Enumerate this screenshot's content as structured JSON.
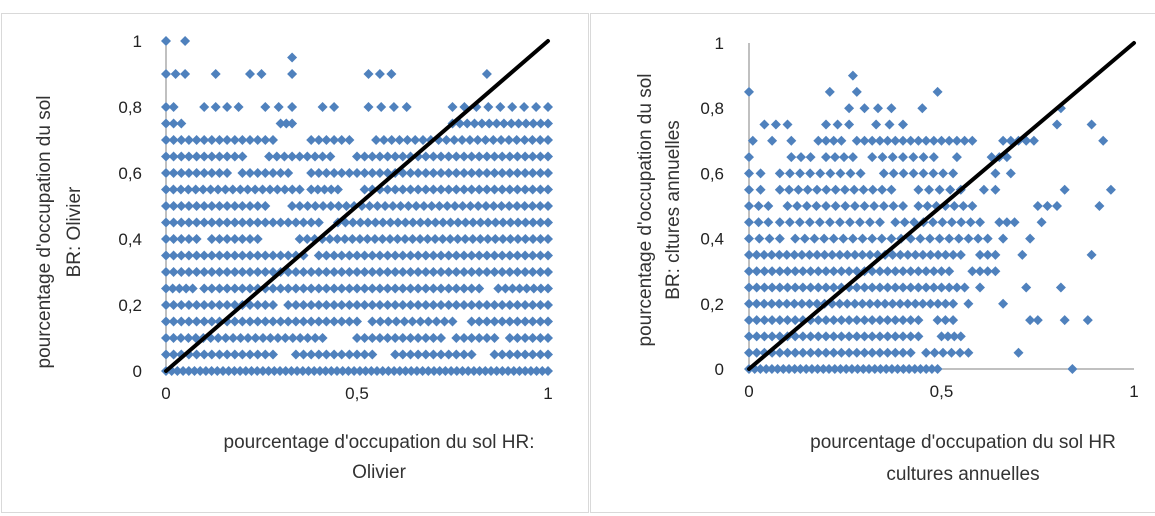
{
  "chart_data": [
    {
      "type": "scatter",
      "title": "",
      "xlabel": "pourcentage d'occupation du sol HR: Olivier",
      "xlabel_lines": [
        "pourcentage d'occupation du sol HR:",
        "Olivier"
      ],
      "ylabel": "pourcentage d'occupation du sol BR: Olivier",
      "ylabel_lines": [
        "pourcentage d'occupation du sol",
        "BR: Olivier"
      ],
      "xlim": [
        0,
        1
      ],
      "ylim": [
        0,
        1
      ],
      "xticks": [
        "0",
        "0,5",
        "1"
      ],
      "yticks": [
        "0",
        "0,2",
        "0,4",
        "0,6",
        "0,8",
        "1"
      ],
      "grid": false,
      "legend": "none",
      "marker_color": "#4f81bd",
      "line_color": "#000000",
      "reference_line": {
        "x": [
          0,
          1
        ],
        "y": [
          0,
          1
        ]
      },
      "point_rows": [
        {
          "y": 1.0,
          "x_ranges": [
            [
              0.0,
              0.05
            ]
          ],
          "step": 0.05
        },
        {
          "y": 0.95,
          "x_ranges": [
            [
              0.33,
              0.33
            ]
          ],
          "step": 0.05
        },
        {
          "y": 0.9,
          "x_ranges": [
            [
              0.0,
              0.05
            ],
            [
              0.13,
              0.13
            ],
            [
              0.22,
              0.25
            ],
            [
              0.33,
              0.33
            ],
            [
              0.53,
              0.59
            ],
            [
              0.84,
              0.84
            ]
          ],
          "step": 0.03
        },
        {
          "y": 0.8,
          "x_ranges": [
            [
              0.0,
              0.02
            ],
            [
              0.1,
              0.19
            ],
            [
              0.26,
              0.33
            ],
            [
              0.41,
              0.44
            ],
            [
              0.53,
              0.63
            ],
            [
              0.75,
              1.0
            ]
          ],
          "step": 0.03
        },
        {
          "y": 0.75,
          "x_ranges": [
            [
              0.0,
              0.04
            ],
            [
              0.3,
              0.33
            ],
            [
              0.75,
              1.0
            ]
          ],
          "step": 0.02
        },
        {
          "y": 0.7,
          "x_ranges": [
            [
              0.0,
              0.28
            ],
            [
              0.38,
              0.48
            ],
            [
              0.55,
              1.0
            ]
          ],
          "step": 0.02
        },
        {
          "y": 0.65,
          "x_ranges": [
            [
              0.0,
              0.2
            ],
            [
              0.27,
              0.43
            ],
            [
              0.5,
              1.0
            ]
          ],
          "step": 0.02
        },
        {
          "y": 0.6,
          "x_ranges": [
            [
              0.0,
              0.16
            ],
            [
              0.2,
              0.32
            ],
            [
              0.38,
              1.0
            ]
          ],
          "step": 0.02
        },
        {
          "y": 0.55,
          "x_ranges": [
            [
              0.0,
              0.35
            ],
            [
              0.38,
              0.45
            ],
            [
              0.52,
              1.0
            ]
          ],
          "step": 0.02
        },
        {
          "y": 0.5,
          "x_ranges": [
            [
              0.0,
              0.26
            ],
            [
              0.33,
              1.0
            ]
          ],
          "step": 0.02
        },
        {
          "y": 0.45,
          "x_ranges": [
            [
              0.0,
              0.4
            ],
            [
              0.45,
              1.0
            ]
          ],
          "step": 0.02
        },
        {
          "y": 0.4,
          "x_ranges": [
            [
              0.0,
              0.08
            ],
            [
              0.12,
              0.24
            ],
            [
              0.35,
              1.0
            ]
          ],
          "step": 0.02
        },
        {
          "y": 0.35,
          "x_ranges": [
            [
              0.0,
              0.36
            ],
            [
              0.4,
              1.0
            ]
          ],
          "step": 0.02
        },
        {
          "y": 0.3,
          "x_ranges": [
            [
              0.0,
              1.0
            ]
          ],
          "step": 0.02
        },
        {
          "y": 0.25,
          "x_ranges": [
            [
              0.0,
              0.07
            ],
            [
              0.1,
              0.82
            ],
            [
              0.87,
              1.0
            ]
          ],
          "step": 0.02
        },
        {
          "y": 0.2,
          "x_ranges": [
            [
              0.0,
              0.28
            ],
            [
              0.32,
              1.0
            ]
          ],
          "step": 0.02
        },
        {
          "y": 0.15,
          "x_ranges": [
            [
              0.0,
              0.5
            ],
            [
              0.54,
              0.75
            ],
            [
              0.8,
              1.0
            ]
          ],
          "step": 0.02
        },
        {
          "y": 0.1,
          "x_ranges": [
            [
              0.0,
              0.41
            ],
            [
              0.5,
              0.72
            ],
            [
              0.76,
              0.86
            ],
            [
              0.9,
              1.0
            ]
          ],
          "step": 0.02
        },
        {
          "y": 0.05,
          "x_ranges": [
            [
              0.0,
              0.28
            ],
            [
              0.34,
              0.54
            ],
            [
              0.6,
              0.8
            ],
            [
              0.86,
              1.0
            ]
          ],
          "step": 0.02
        },
        {
          "y": 0.0,
          "x_ranges": [
            [
              0.0,
              1.0
            ]
          ],
          "step": 0.015
        }
      ]
    },
    {
      "type": "scatter",
      "title": "",
      "xlabel": "pourcentage d'occupation du sol HR cultures annuelles",
      "xlabel_lines": [
        "pourcentage d'occupation du sol  HR",
        "cultures annuelles"
      ],
      "ylabel": "pourcentage d'occupation du sol BR: cltures annuelles",
      "ylabel_lines": [
        "pourcentage d'occupation du sol",
        "BR: cltures annuelles"
      ],
      "xlim": [
        0,
        1
      ],
      "ylim": [
        0,
        1
      ],
      "xticks": [
        "0",
        "0,5",
        "1"
      ],
      "yticks": [
        "0",
        "0,2",
        "0,4",
        "0,6",
        "0,8",
        "1"
      ],
      "grid": false,
      "legend": "none",
      "marker_color": "#4f81bd",
      "line_color": "#000000",
      "reference_line": {
        "x": [
          0,
          1
        ],
        "y": [
          0,
          1
        ]
      },
      "point_rows": [
        {
          "y": 0.9,
          "x_ranges": [
            [
              0.27,
              0.27
            ]
          ],
          "step": 0.05
        },
        {
          "y": 0.85,
          "x_ranges": [
            [
              0.0,
              0.0
            ],
            [
              0.21,
              0.21
            ],
            [
              0.28,
              0.28
            ],
            [
              0.49,
              0.49
            ]
          ],
          "step": 0.05
        },
        {
          "y": 0.8,
          "x_ranges": [
            [
              0.26,
              0.26
            ],
            [
              0.3,
              0.37
            ],
            [
              0.45,
              0.45
            ],
            [
              0.81,
              0.81
            ]
          ],
          "step": 0.035
        },
        {
          "y": 0.75,
          "x_ranges": [
            [
              0.04,
              0.1
            ],
            [
              0.2,
              0.26
            ],
            [
              0.33,
              0.4
            ],
            [
              0.8,
              0.8
            ],
            [
              0.89,
              0.89
            ]
          ],
          "step": 0.03
        },
        {
          "y": 0.7,
          "x_ranges": [
            [
              0.01,
              0.01
            ],
            [
              0.06,
              0.06
            ],
            [
              0.11,
              0.11
            ],
            [
              0.18,
              0.24
            ],
            [
              0.28,
              0.58
            ],
            [
              0.66,
              0.74
            ],
            [
              0.92,
              0.92
            ]
          ],
          "step": 0.02
        },
        {
          "y": 0.65,
          "x_ranges": [
            [
              0.0,
              0.0
            ],
            [
              0.11,
              0.16
            ],
            [
              0.2,
              0.27
            ],
            [
              0.32,
              0.48
            ],
            [
              0.54,
              0.54
            ],
            [
              0.63,
              0.67
            ]
          ],
          "step": 0.025
        },
        {
          "y": 0.6,
          "x_ranges": [
            [
              0.0,
              0.03
            ],
            [
              0.08,
              0.29
            ],
            [
              0.35,
              0.53
            ],
            [
              0.64,
              0.64
            ],
            [
              0.68,
              0.68
            ]
          ],
          "step": 0.025
        },
        {
          "y": 0.55,
          "x_ranges": [
            [
              0.0,
              0.03
            ],
            [
              0.08,
              0.37
            ],
            [
              0.44,
              0.55
            ],
            [
              0.61,
              0.64
            ],
            [
              0.82,
              0.82
            ],
            [
              0.94,
              0.94
            ]
          ],
          "step": 0.025
        },
        {
          "y": 0.5,
          "x_ranges": [
            [
              0.0,
              0.05
            ],
            [
              0.1,
              0.4
            ],
            [
              0.44,
              0.58
            ],
            [
              0.75,
              0.8
            ],
            [
              0.91,
              0.91
            ]
          ],
          "step": 0.025
        },
        {
          "y": 0.45,
          "x_ranges": [
            [
              0.0,
              0.05
            ],
            [
              0.08,
              0.34
            ],
            [
              0.38,
              0.6
            ],
            [
              0.65,
              0.69
            ],
            [
              0.76,
              0.76
            ]
          ],
          "step": 0.025
        },
        {
          "y": 0.4,
          "x_ranges": [
            [
              0.0,
              0.08
            ],
            [
              0.12,
              0.62
            ],
            [
              0.66,
              0.66
            ],
            [
              0.73,
              0.73
            ]
          ],
          "step": 0.025
        },
        {
          "y": 0.35,
          "x_ranges": [
            [
              0.0,
              0.55
            ],
            [
              0.6,
              0.64
            ],
            [
              0.71,
              0.71
            ],
            [
              0.89,
              0.89
            ]
          ],
          "step": 0.02
        },
        {
          "y": 0.3,
          "x_ranges": [
            [
              0.0,
              0.52
            ],
            [
              0.58,
              0.64
            ]
          ],
          "step": 0.02
        },
        {
          "y": 0.25,
          "x_ranges": [
            [
              0.0,
              0.56
            ],
            [
              0.6,
              0.6
            ],
            [
              0.72,
              0.72
            ],
            [
              0.81,
              0.81
            ]
          ],
          "step": 0.02
        },
        {
          "y": 0.2,
          "x_ranges": [
            [
              0.0,
              0.53
            ],
            [
              0.57,
              0.57
            ],
            [
              0.66,
              0.66
            ]
          ],
          "step": 0.02
        },
        {
          "y": 0.15,
          "x_ranges": [
            [
              0.0,
              0.44
            ],
            [
              0.49,
              0.53
            ],
            [
              0.73,
              0.75
            ],
            [
              0.82,
              0.82
            ],
            [
              0.88,
              0.88
            ]
          ],
          "step": 0.02
        },
        {
          "y": 0.1,
          "x_ranges": [
            [
              0.0,
              0.44
            ],
            [
              0.5,
              0.55
            ]
          ],
          "step": 0.02
        },
        {
          "y": 0.05,
          "x_ranges": [
            [
              0.0,
              0.42
            ],
            [
              0.46,
              0.57
            ],
            [
              0.7,
              0.7
            ]
          ],
          "step": 0.02
        },
        {
          "y": 0.0,
          "x_ranges": [
            [
              0.0,
              0.49
            ],
            [
              0.84,
              0.84
            ]
          ],
          "step": 0.015
        }
      ]
    }
  ]
}
